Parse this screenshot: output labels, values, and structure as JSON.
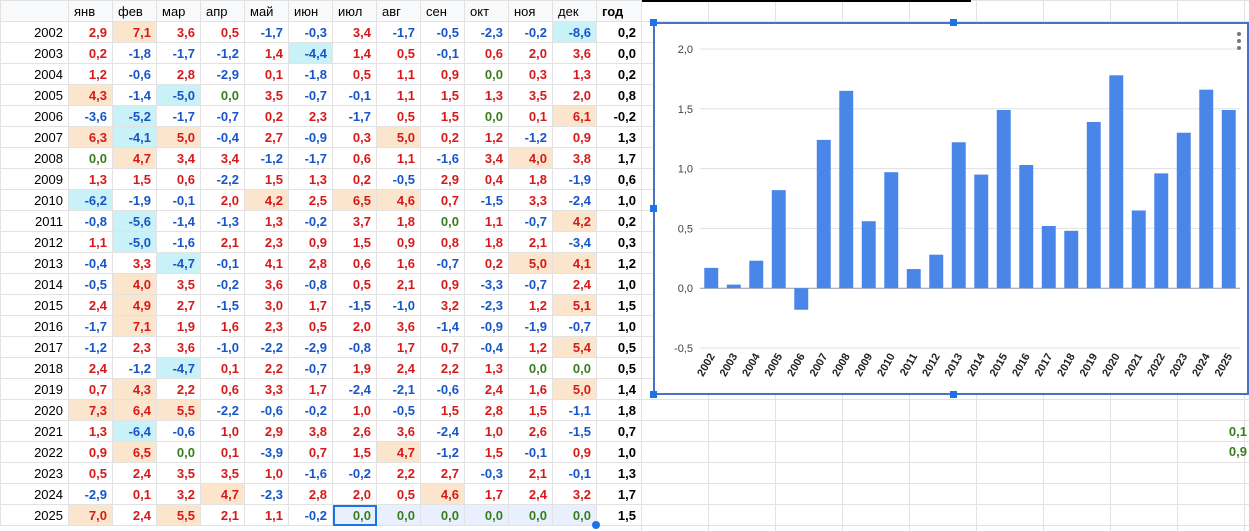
{
  "sheet": {
    "months": [
      "янв",
      "фев",
      "мар",
      "апр",
      "май",
      "июн",
      "июл",
      "авг",
      "сен",
      "окт",
      "ноя",
      "дек"
    ],
    "total_header": "год",
    "rows": [
      {
        "year": "2002",
        "v": [
          "2,9",
          "7,1",
          "3,6",
          "0,5",
          "-1,7",
          "-0,3",
          "3,4",
          "-1,7",
          "-0,5",
          "-2,3",
          "-0,2",
          "-8,6"
        ],
        "t": "0,2",
        "hl": {
          "1": "hot",
          "11": "cold"
        }
      },
      {
        "year": "2003",
        "v": [
          "0,2",
          "-1,8",
          "-1,7",
          "-1,2",
          "1,4",
          "-4,4",
          "1,4",
          "0,5",
          "-0,1",
          "0,6",
          "2,0",
          "3,6"
        ],
        "t": "0,0",
        "hl": {
          "5": "cold"
        }
      },
      {
        "year": "2004",
        "v": [
          "1,2",
          "-0,6",
          "2,8",
          "-2,9",
          "0,1",
          "-1,8",
          "0,5",
          "1,1",
          "0,9",
          "0,0",
          "0,3",
          "1,3"
        ],
        "t": "0,2",
        "hl": {}
      },
      {
        "year": "2005",
        "v": [
          "4,3",
          "-1,4",
          "-5,0",
          "0,0",
          "3,5",
          "-0,7",
          "-0,1",
          "1,1",
          "1,5",
          "1,3",
          "3,5",
          "2,0"
        ],
        "t": "0,8",
        "hl": {
          "0": "hot",
          "2": "cold"
        }
      },
      {
        "year": "2006",
        "v": [
          "-3,6",
          "-5,2",
          "-1,7",
          "-0,7",
          "0,2",
          "2,3",
          "-1,7",
          "0,5",
          "1,5",
          "0,0",
          "0,1",
          "6,1"
        ],
        "t": "-0,2",
        "hl": {
          "1": "cold",
          "11": "hot"
        }
      },
      {
        "year": "2007",
        "v": [
          "6,3",
          "-4,1",
          "5,0",
          "-0,4",
          "2,7",
          "-0,9",
          "0,3",
          "5,0",
          "0,2",
          "1,2",
          "-1,2",
          "0,9"
        ],
        "t": "1,3",
        "hl": {
          "0": "hot",
          "1": "cold",
          "2": "hot",
          "7": "hot"
        }
      },
      {
        "year": "2008",
        "v": [
          "0,0",
          "4,7",
          "3,4",
          "3,4",
          "-1,2",
          "-1,7",
          "0,6",
          "1,1",
          "-1,6",
          "3,4",
          "4,0",
          "3,8"
        ],
        "t": "1,7",
        "hl": {
          "1": "hot",
          "10": "hot"
        }
      },
      {
        "year": "2009",
        "v": [
          "1,3",
          "1,5",
          "0,6",
          "-2,2",
          "1,5",
          "1,3",
          "0,2",
          "-0,5",
          "2,9",
          "0,4",
          "1,8",
          "-1,9"
        ],
        "t": "0,6",
        "hl": {}
      },
      {
        "year": "2010",
        "v": [
          "-6,2",
          "-1,9",
          "-0,1",
          "2,0",
          "4,2",
          "2,5",
          "6,5",
          "4,6",
          "0,7",
          "-1,5",
          "3,3",
          "-2,4"
        ],
        "t": "1,0",
        "hl": {
          "0": "cold",
          "4": "hot",
          "6": "hot",
          "7": "hot"
        }
      },
      {
        "year": "2011",
        "v": [
          "-0,8",
          "-5,6",
          "-1,4",
          "-1,3",
          "1,3",
          "-0,2",
          "3,7",
          "1,8",
          "0,0",
          "1,1",
          "-0,7",
          "4,2"
        ],
        "t": "0,2",
        "hl": {
          "1": "cold",
          "11": "hot"
        }
      },
      {
        "year": "2012",
        "v": [
          "1,1",
          "-5,0",
          "-1,6",
          "2,1",
          "2,3",
          "0,9",
          "1,5",
          "0,9",
          "0,8",
          "1,8",
          "2,1",
          "-3,4"
        ],
        "t": "0,3",
        "hl": {
          "1": "cold"
        }
      },
      {
        "year": "2013",
        "v": [
          "-0,4",
          "3,3",
          "-4,7",
          "-0,1",
          "4,1",
          "2,8",
          "0,6",
          "1,6",
          "-0,7",
          "0,2",
          "5,0",
          "4,1"
        ],
        "t": "1,2",
        "hl": {
          "2": "cold",
          "10": "hot",
          "11": "hot"
        }
      },
      {
        "year": "2014",
        "v": [
          "-0,5",
          "4,0",
          "3,5",
          "-0,2",
          "3,6",
          "-0,8",
          "0,5",
          "2,1",
          "0,9",
          "-3,3",
          "-0,7",
          "2,4"
        ],
        "t": "1,0",
        "hl": {
          "1": "hot"
        }
      },
      {
        "year": "2015",
        "v": [
          "2,4",
          "4,9",
          "2,7",
          "-1,5",
          "3,0",
          "1,7",
          "-1,5",
          "-1,0",
          "3,2",
          "-2,3",
          "1,2",
          "5,1"
        ],
        "t": "1,5",
        "hl": {
          "1": "hot",
          "11": "hot"
        }
      },
      {
        "year": "2016",
        "v": [
          "-1,7",
          "7,1",
          "1,9",
          "1,6",
          "2,3",
          "0,5",
          "2,0",
          "3,6",
          "-1,4",
          "-0,9",
          "-1,9",
          "-0,7"
        ],
        "t": "1,0",
        "hl": {
          "1": "hot"
        }
      },
      {
        "year": "2017",
        "v": [
          "-1,2",
          "2,3",
          "3,6",
          "-1,0",
          "-2,2",
          "-2,9",
          "-0,8",
          "1,7",
          "0,7",
          "-0,4",
          "1,2",
          "5,4"
        ],
        "t": "0,5",
        "hl": {
          "11": "hot"
        }
      },
      {
        "year": "2018",
        "v": [
          "2,4",
          "-1,2",
          "-4,7",
          "0,1",
          "2,2",
          "-0,7",
          "1,9",
          "2,4",
          "2,2",
          "1,3",
          "0,0",
          "0,0"
        ],
        "t": "0,5",
        "hl": {
          "2": "cold"
        }
      },
      {
        "year": "2019",
        "v": [
          "0,7",
          "4,3",
          "2,2",
          "0,6",
          "3,3",
          "1,7",
          "-2,4",
          "-2,1",
          "-0,6",
          "2,4",
          "1,6",
          "5,0"
        ],
        "t": "1,4",
        "hl": {
          "1": "hot",
          "11": "hot"
        }
      },
      {
        "year": "2020",
        "v": [
          "7,3",
          "6,4",
          "5,5",
          "-2,2",
          "-0,6",
          "-0,2",
          "1,0",
          "-0,5",
          "1,5",
          "2,8",
          "1,5",
          "-1,1"
        ],
        "t": "1,8",
        "hl": {
          "0": "hot",
          "1": "hot",
          "2": "hot"
        }
      },
      {
        "year": "2021",
        "v": [
          "1,3",
          "-6,4",
          "-0,6",
          "1,0",
          "2,9",
          "3,8",
          "2,6",
          "3,6",
          "-2,4",
          "1,0",
          "2,6",
          "-1,5"
        ],
        "t": "0,7",
        "hl": {
          "1": "cold"
        }
      },
      {
        "year": "2022",
        "v": [
          "0,9",
          "6,5",
          "0,0",
          "0,1",
          "-3,9",
          "0,7",
          "1,5",
          "4,7",
          "-1,2",
          "1,5",
          "-0,1",
          "0,9"
        ],
        "t": "1,0",
        "hl": {
          "1": "hot",
          "7": "hot"
        }
      },
      {
        "year": "2023",
        "v": [
          "0,5",
          "2,4",
          "3,5",
          "3,5",
          "1,0",
          "-1,6",
          "-0,2",
          "2,2",
          "2,7",
          "-0,3",
          "2,1",
          "-0,1"
        ],
        "t": "1,3",
        "hl": {}
      },
      {
        "year": "2024",
        "v": [
          "-2,9",
          "0,1",
          "3,2",
          "4,7",
          "-2,3",
          "2,8",
          "2,0",
          "0,5",
          "4,6",
          "1,7",
          "2,4",
          "3,2"
        ],
        "t": "1,7",
        "hl": {
          "3": "hot",
          "8": "hot"
        }
      },
      {
        "year": "2025",
        "v": [
          "7,0",
          "2,4",
          "5,5",
          "2,1",
          "1,1",
          "-0,2",
          "0,0",
          "0,0",
          "0,0",
          "0,0",
          "0,0",
          "0,0"
        ],
        "t": "1,5",
        "hl": {
          "0": "hot",
          "2": "hot",
          "6": "sel",
          "7": "sel",
          "8": "sel",
          "9": "sel",
          "10": "sel",
          "11": "sel"
        }
      }
    ]
  },
  "offscreen_values": [
    "0,1",
    "0,9"
  ],
  "colors": {
    "positive": "#d61a1a",
    "negative": "#1755c9",
    "zero": "#3a7d1e",
    "warm_fill": "#fce5cd",
    "cool_fill": "#c9f1f8",
    "bar": "#4a86e8"
  },
  "chart_data": {
    "type": "bar",
    "categories": [
      "2002",
      "2003",
      "2004",
      "2005",
      "2006",
      "2007",
      "2008",
      "2009",
      "2010",
      "2011",
      "2012",
      "2013",
      "2014",
      "2015",
      "2016",
      "2017",
      "2018",
      "2019",
      "2020",
      "2021",
      "2022",
      "2023",
      "2024",
      "2025"
    ],
    "values": [
      0.17,
      0.03,
      0.23,
      0.82,
      -0.18,
      1.24,
      1.65,
      0.56,
      0.97,
      0.16,
      0.28,
      1.22,
      0.95,
      1.49,
      1.03,
      0.52,
      0.48,
      1.39,
      1.78,
      0.65,
      0.96,
      1.3,
      1.66,
      1.49
    ],
    "ylim": [
      -0.5,
      2.0
    ],
    "yticks": [
      "-0,5",
      "0,0",
      "0,5",
      "1,0",
      "1,5",
      "2,0"
    ],
    "ytick_values": [
      -0.5,
      0,
      0.5,
      1.0,
      1.5,
      2.0
    ],
    "grid": true,
    "title": "",
    "xlabel": "",
    "ylabel": ""
  }
}
